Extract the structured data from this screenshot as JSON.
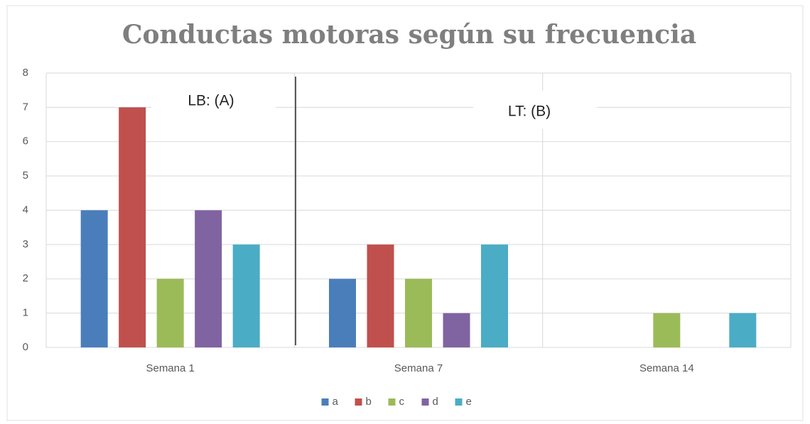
{
  "chart_data": {
    "type": "bar",
    "title": "Conductas motoras según su frecuencia",
    "categories": [
      "Semana 1",
      "Semana 7",
      "Semana 14"
    ],
    "series": [
      {
        "name": "a",
        "color": "#4a7ebb",
        "values": [
          4,
          2,
          0
        ]
      },
      {
        "name": "b",
        "color": "#c0504d",
        "values": [
          7,
          3,
          0
        ]
      },
      {
        "name": "c",
        "color": "#9bbb59",
        "values": [
          2,
          2,
          1
        ]
      },
      {
        "name": "d",
        "color": "#8064a2",
        "values": [
          4,
          1,
          0
        ]
      },
      {
        "name": "e",
        "color": "#4bacc6",
        "values": [
          3,
          3,
          1
        ]
      }
    ],
    "annotations": [
      "LB: (A)",
      "LT: (B)"
    ],
    "ylim": [
      0,
      8
    ],
    "yticks": [
      0,
      1,
      2,
      3,
      4,
      5,
      6,
      7,
      8
    ],
    "grid": true,
    "legend": "bottom"
  }
}
